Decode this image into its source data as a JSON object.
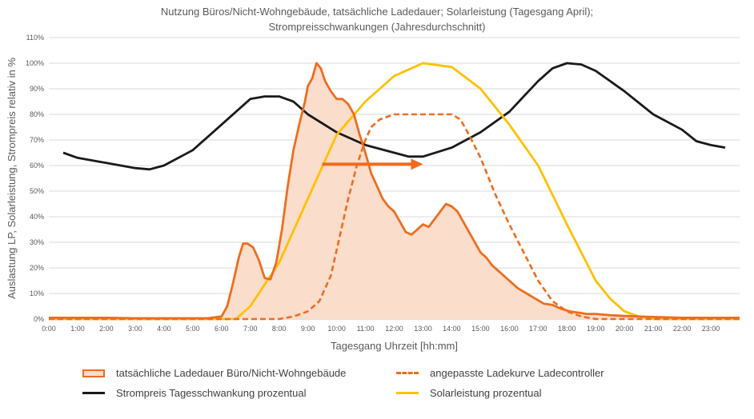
{
  "chart_data": {
    "type": "line",
    "title_line1": "Nutzung Büros/Nicht-Wohngebäude, tatsächliche Ladedauer; Solarleistung (Tagesgang April);",
    "title_line2": "Strompreisschwankungen (Jahresdurchschnitt)",
    "xlabel": "Tagesgang Uhrzeit [hh:mm]",
    "ylabel": "Auslastung LP, Solarleistung, Strompreis relativ in %",
    "xlim": [
      0,
      24
    ],
    "ylim": [
      0,
      110
    ],
    "x_ticks": [
      "0:00",
      "1:00",
      "2:00",
      "3:00",
      "4:00",
      "5:00",
      "6:00",
      "7:00",
      "8:00",
      "9:00",
      "10:00",
      "11:00",
      "12:00",
      "13:00",
      "14:00",
      "15:00",
      "16:00",
      "17:00",
      "18:00",
      "19:00",
      "20:00",
      "21:00",
      "22:00",
      "23:00"
    ],
    "y_ticks": [
      "0%",
      "10%",
      "20%",
      "30%",
      "40%",
      "50%",
      "60%",
      "70%",
      "80%",
      "90%",
      "100%",
      "110%"
    ],
    "grid": true,
    "legend_position": "bottom",
    "colors": {
      "ladedauer": "#ED6D1F",
      "ladedauer_fill": "#FBDDCB",
      "ladekurve": "#ED6D1F",
      "strompreis": "#1A1A1A",
      "solar": "#FFC000",
      "arrow": "#F26B1D",
      "grid": "#D9D9D9"
    },
    "series": [
      {
        "name": "tatsächliche Ladedauer Büro/Nicht-Wohngebäude",
        "style": "area",
        "x": [
          0,
          1,
          2,
          3,
          4,
          5,
          5.5,
          6,
          6.2,
          6.4,
          6.6,
          6.75,
          6.9,
          7.1,
          7.3,
          7.5,
          7.7,
          7.9,
          8.1,
          8.3,
          8.5,
          8.7,
          8.9,
          9.0,
          9.15,
          9.3,
          9.45,
          9.6,
          9.8,
          10.0,
          10.2,
          10.4,
          10.6,
          10.8,
          11.0,
          11.2,
          11.4,
          11.6,
          11.8,
          12.0,
          12.2,
          12.4,
          12.6,
          12.8,
          13.0,
          13.2,
          13.4,
          13.6,
          13.8,
          14.0,
          14.2,
          14.4,
          14.6,
          14.8,
          15.0,
          15.2,
          15.4,
          15.6,
          15.8,
          16.0,
          16.3,
          16.6,
          16.9,
          17.2,
          17.5,
          17.8,
          18.1,
          18.4,
          18.7,
          19.0,
          19.5,
          20.0,
          20.5,
          21.0,
          22.0,
          23.0,
          24.0
        ],
        "y": [
          0.5,
          0.5,
          0.5,
          0.3,
          0.3,
          0.3,
          0.3,
          1,
          5,
          14,
          24,
          29.5,
          29.5,
          28,
          23,
          16,
          15.5,
          22,
          35,
          52,
          66,
          76,
          85,
          91,
          94,
          100,
          98,
          93,
          89,
          86,
          86,
          84,
          80,
          72,
          65,
          57,
          52,
          47,
          44,
          42,
          38,
          34,
          33,
          35,
          37,
          36,
          39,
          42,
          45,
          44,
          42,
          38,
          34,
          30,
          26,
          24,
          21,
          19,
          17,
          15,
          12,
          10,
          8,
          6,
          5.5,
          4,
          3,
          2.5,
          2,
          2,
          1.5,
          1.2,
          1,
          0.8,
          0.5,
          0.5,
          0.5
        ]
      },
      {
        "name": "angepasste Ladekurve Ladecontroller",
        "style": "dashed",
        "x": [
          0,
          1,
          2,
          3,
          4,
          5,
          6,
          7,
          8,
          8.5,
          9,
          9.4,
          9.8,
          10.1,
          10.4,
          10.7,
          11,
          11.2,
          11.5,
          12,
          12.5,
          13,
          13.5,
          14,
          14.3,
          14.6,
          15,
          15.5,
          16,
          16.5,
          17,
          17.5,
          18,
          18.5,
          19,
          20,
          21,
          22,
          23,
          24
        ],
        "y": [
          0,
          0,
          0,
          0,
          0,
          0,
          0,
          0,
          0,
          1,
          3,
          7,
          17,
          32,
          47,
          60,
          70,
          75,
          78,
          80,
          80,
          80,
          80,
          80,
          78,
          72,
          63,
          49,
          37,
          26,
          15,
          7,
          3,
          1,
          0,
          0,
          0,
          0,
          0,
          0
        ]
      },
      {
        "name": "Strompreis Tagesschwankung prozentual",
        "style": "line",
        "x": [
          0.5,
          1,
          2,
          2.5,
          3,
          3.5,
          4,
          5,
          6,
          7,
          7.5,
          8,
          8.5,
          9,
          10,
          11,
          12,
          12.5,
          13,
          14,
          15,
          16,
          16.5,
          17,
          17.5,
          18,
          18.5,
          19,
          20,
          21,
          22,
          22.5,
          23,
          23.5
        ],
        "y": [
          65,
          63,
          61,
          60,
          59,
          58.5,
          60,
          66,
          76,
          86,
          87,
          87,
          85,
          80,
          73,
          68,
          65,
          63.5,
          63.5,
          67,
          73,
          81,
          87,
          93,
          98,
          100,
          99.5,
          97,
          89,
          80,
          74,
          69.5,
          68,
          67
        ]
      },
      {
        "name": "Solarleistung prozentual",
        "style": "line",
        "x": [
          0,
          1,
          2,
          3,
          4,
          5,
          6,
          6.5,
          7,
          8,
          9,
          10,
          11,
          12,
          13,
          14,
          15,
          16,
          17,
          18,
          19,
          19.5,
          20,
          20.5,
          21,
          22,
          23,
          24
        ],
        "y": [
          0,
          0,
          0,
          0,
          0,
          0,
          0,
          0,
          5,
          22,
          47,
          72,
          85,
          95,
          100,
          98.5,
          90,
          76,
          60,
          37,
          15,
          8,
          3,
          1,
          0,
          0,
          0,
          0
        ]
      }
    ],
    "annotations": [
      {
        "type": "arrow",
        "from": [
          9.5,
          60.5
        ],
        "to": [
          13.0,
          60.5
        ]
      }
    ]
  }
}
